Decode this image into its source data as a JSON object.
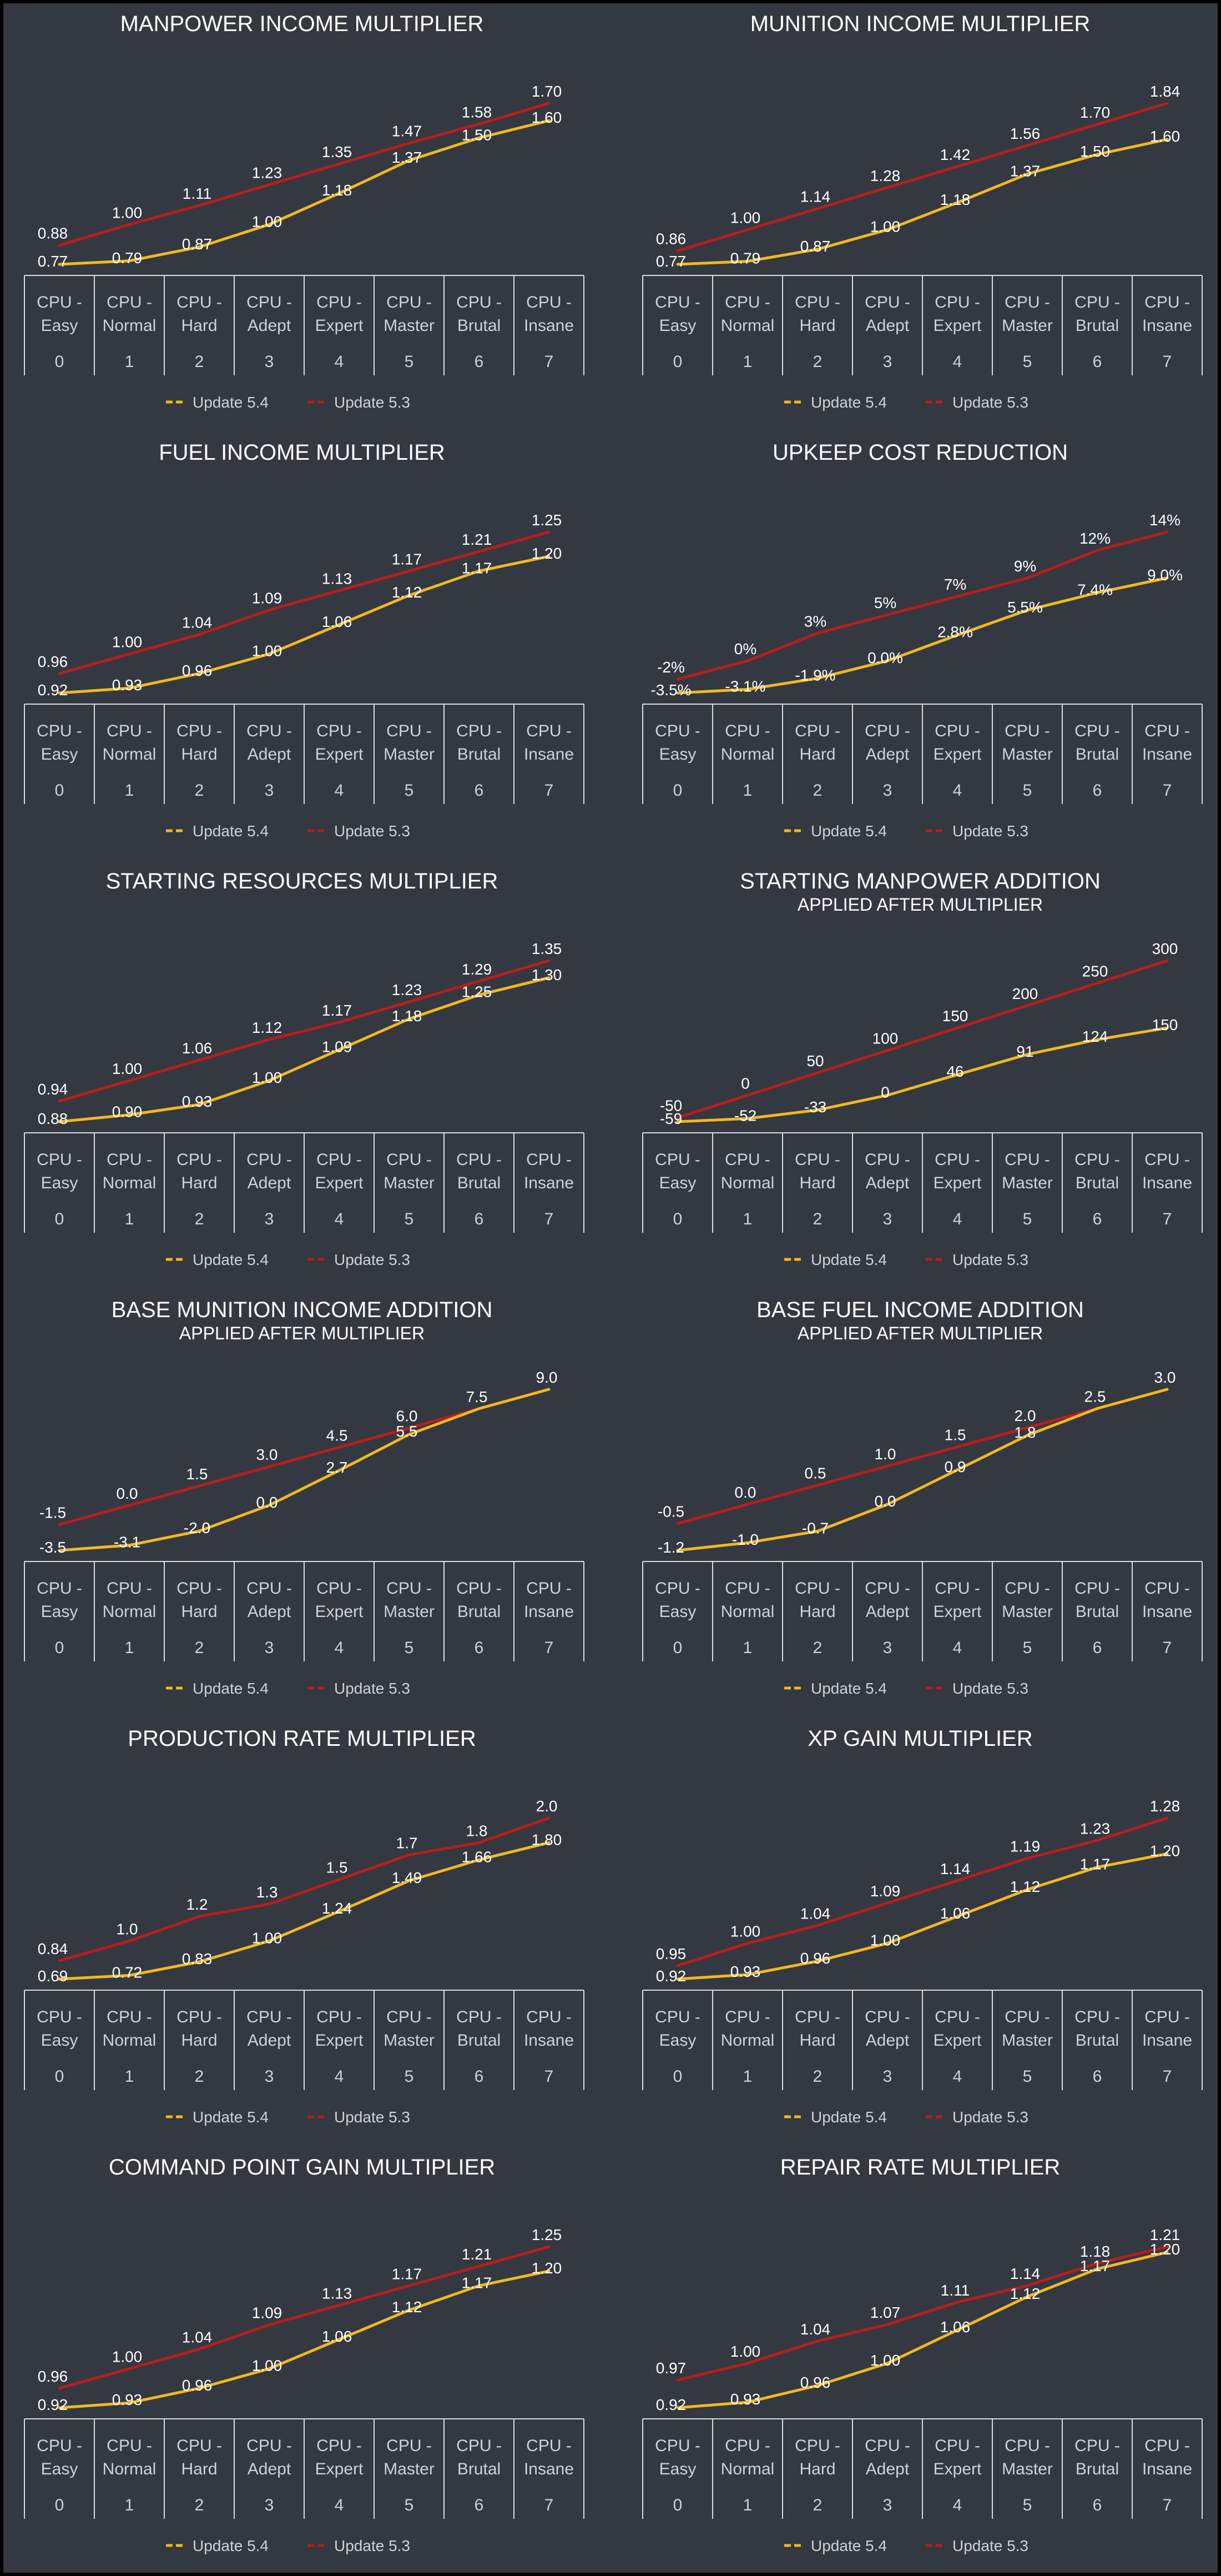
{
  "categories": [
    "CPU - Easy",
    "CPU - Normal",
    "CPU - Hard",
    "CPU - Adept",
    "CPU - Expert",
    "CPU - Master",
    "CPU - Brutal",
    "CPU - Insane"
  ],
  "indices": [
    "0",
    "1",
    "2",
    "3",
    "4",
    "5",
    "6",
    "7"
  ],
  "series_names": [
    "Update 5.4",
    "Update 5.3"
  ],
  "colors": {
    "Update 5.4": "#f2b81f",
    "Update 5.3": "#b81d1d",
    "background": "#343840",
    "grid": "#d9dce2"
  },
  "chart_data": [
    {
      "type": "line",
      "title": "MANPOWER INCOME MULTIPLIER",
      "subtitle": "",
      "series": [
        {
          "name": "Update 5.4",
          "values": [
            0.77,
            0.79,
            0.87,
            1.0,
            1.18,
            1.37,
            1.5,
            1.6
          ],
          "labels": [
            "0.77",
            "0.79",
            "0.87",
            "1.00",
            "1.18",
            "1.37",
            "1.50",
            "1.60"
          ]
        },
        {
          "name": "Update 5.3",
          "values": [
            0.88,
            1.0,
            1.11,
            1.23,
            1.35,
            1.47,
            1.58,
            1.7
          ],
          "labels": [
            "0.88",
            "1.00",
            "1.11",
            "1.23",
            "1.35",
            "1.47",
            "1.58",
            "1.70"
          ]
        }
      ]
    },
    {
      "type": "line",
      "title": "MUNITION INCOME MULTIPLIER",
      "subtitle": "",
      "series": [
        {
          "name": "Update 5.4",
          "values": [
            0.77,
            0.79,
            0.87,
            1.0,
            1.18,
            1.37,
            1.5,
            1.6
          ],
          "labels": [
            "0.77",
            "0.79",
            "0.87",
            "1.00",
            "1.18",
            "1.37",
            "1.50",
            "1.60"
          ]
        },
        {
          "name": "Update 5.3",
          "values": [
            0.86,
            1.0,
            1.14,
            1.28,
            1.42,
            1.56,
            1.7,
            1.84
          ],
          "labels": [
            "0.86",
            "1.00",
            "1.14",
            "1.28",
            "1.42",
            "1.56",
            "1.70",
            "1.84"
          ]
        }
      ]
    },
    {
      "type": "line",
      "title": "FUEL INCOME MULTIPLIER",
      "subtitle": "",
      "series": [
        {
          "name": "Update 5.4",
          "values": [
            0.92,
            0.93,
            0.96,
            1.0,
            1.06,
            1.12,
            1.17,
            1.2
          ],
          "labels": [
            "0.92",
            "0.93",
            "0.96",
            "1.00",
            "1.06",
            "1.12",
            "1.17",
            "1.20"
          ]
        },
        {
          "name": "Update 5.3",
          "values": [
            0.96,
            1.0,
            1.04,
            1.09,
            1.13,
            1.17,
            1.21,
            1.25
          ],
          "labels": [
            "0.96",
            "1.00",
            "1.04",
            "1.09",
            "1.13",
            "1.17",
            "1.21",
            "1.25"
          ]
        }
      ]
    },
    {
      "type": "line",
      "title": "UPKEEP COST REDUCTION",
      "subtitle": "",
      "series": [
        {
          "name": "Update 5.4",
          "values": [
            -3.5,
            -3.1,
            -1.9,
            0.0,
            2.8,
            5.5,
            7.4,
            9.0
          ],
          "labels": [
            "-3.5%",
            "-3.1%",
            "-1.9%",
            "0.0%",
            "2.8%",
            "5.5%",
            "7.4%",
            "9.0%"
          ]
        },
        {
          "name": "Update 5.3",
          "values": [
            -2,
            0,
            3,
            5,
            7,
            9,
            12,
            14
          ],
          "labels": [
            "-2%",
            "0%",
            "3%",
            "5%",
            "7%",
            "9%",
            "12%",
            "14%"
          ]
        }
      ]
    },
    {
      "type": "line",
      "title": "STARTING RESOURCES MULTIPLIER",
      "subtitle": "",
      "series": [
        {
          "name": "Update 5.4",
          "values": [
            0.88,
            0.9,
            0.93,
            1.0,
            1.09,
            1.18,
            1.25,
            1.3
          ],
          "labels": [
            "0.88",
            "0.90",
            "0.93",
            "1.00",
            "1.09",
            "1.18",
            "1.25",
            "1.30"
          ]
        },
        {
          "name": "Update 5.3",
          "values": [
            0.94,
            1.0,
            1.06,
            1.12,
            1.17,
            1.23,
            1.29,
            1.35
          ],
          "labels": [
            "0.94",
            "1.00",
            "1.06",
            "1.12",
            "1.17",
            "1.23",
            "1.29",
            "1.35"
          ]
        }
      ]
    },
    {
      "type": "line",
      "title": "STARTING MANPOWER ADDITION",
      "subtitle": "APPLIED AFTER MULTIPLIER",
      "series": [
        {
          "name": "Update 5.4",
          "values": [
            -59,
            -52,
            -33,
            0,
            46,
            91,
            124,
            150
          ],
          "labels": [
            "-59",
            "-52",
            "-33",
            "0",
            "46",
            "91",
            "124",
            "150"
          ]
        },
        {
          "name": "Update 5.3",
          "values": [
            -50,
            0,
            50,
            100,
            150,
            200,
            250,
            300
          ],
          "labels": [
            "-50",
            "0",
            "50",
            "100",
            "150",
            "200",
            "250",
            "300"
          ]
        }
      ]
    },
    {
      "type": "line",
      "title": "BASE MUNITION INCOME ADDITION",
      "subtitle": "APPLIED AFTER MULTIPLIER",
      "series": [
        {
          "name": "Update 5.4",
          "values": [
            -3.5,
            -3.1,
            -2.0,
            0.0,
            2.7,
            5.5,
            7.5,
            9.0
          ],
          "labels": [
            "-3.5",
            "-3.1",
            "-2.0",
            "0.0",
            "2.7",
            "5.5",
            "",
            ""
          ]
        },
        {
          "name": "Update 5.3",
          "values": [
            -1.5,
            0.0,
            1.5,
            3.0,
            4.5,
            6.0,
            7.5,
            9.0
          ],
          "labels": [
            "-1.5",
            "0.0",
            "1.5",
            "3.0",
            "4.5",
            "6.0",
            "7.5",
            "9.0"
          ]
        }
      ]
    },
    {
      "type": "line",
      "title": "BASE FUEL INCOME ADDITION",
      "subtitle": "APPLIED AFTER MULTIPLIER",
      "series": [
        {
          "name": "Update 5.4",
          "values": [
            -1.2,
            -1.0,
            -0.7,
            0.0,
            0.9,
            1.8,
            2.5,
            3.0
          ],
          "labels": [
            "-1.2",
            "-1.0",
            "-0.7",
            "0.0",
            "0.9",
            "1.8",
            "",
            ""
          ]
        },
        {
          "name": "Update 5.3",
          "values": [
            -0.5,
            0.0,
            0.5,
            1.0,
            1.5,
            2.0,
            2.5,
            3.0
          ],
          "labels": [
            "-0.5",
            "0.0",
            "0.5",
            "1.0",
            "1.5",
            "2.0",
            "2.5",
            "3.0"
          ]
        }
      ]
    },
    {
      "type": "line",
      "title": "PRODUCTION RATE MULTIPLIER",
      "subtitle": "",
      "series": [
        {
          "name": "Update 5.4",
          "values": [
            0.69,
            0.72,
            0.83,
            1.0,
            1.24,
            1.49,
            1.66,
            1.8
          ],
          "labels": [
            "0.69",
            "0.72",
            "0.83",
            "1.00",
            "1.24",
            "1.49",
            "1.66",
            "1.80"
          ]
        },
        {
          "name": "Update 5.3",
          "values": [
            0.84,
            1.0,
            1.2,
            1.3,
            1.5,
            1.7,
            1.8,
            2.0
          ],
          "labels": [
            "0.84",
            "1.0",
            "1.2",
            "1.3",
            "1.5",
            "1.7",
            "1.8",
            "2.0"
          ]
        }
      ]
    },
    {
      "type": "line",
      "title": "XP GAIN MULTIPLIER",
      "subtitle": "",
      "series": [
        {
          "name": "Update 5.4",
          "values": [
            0.92,
            0.93,
            0.96,
            1.0,
            1.06,
            1.12,
            1.17,
            1.2
          ],
          "labels": [
            "0.92",
            "0.93",
            "0.96",
            "1.00",
            "1.06",
            "1.12",
            "1.17",
            "1.20"
          ]
        },
        {
          "name": "Update 5.3",
          "values": [
            0.95,
            1.0,
            1.04,
            1.09,
            1.14,
            1.19,
            1.23,
            1.28
          ],
          "labels": [
            "0.95",
            "1.00",
            "1.04",
            "1.09",
            "1.14",
            "1.19",
            "1.23",
            "1.28"
          ]
        }
      ]
    },
    {
      "type": "line",
      "title": "COMMAND POINT GAIN MULTIPLIER",
      "subtitle": "",
      "series": [
        {
          "name": "Update 5.4",
          "values": [
            0.92,
            0.93,
            0.96,
            1.0,
            1.06,
            1.12,
            1.17,
            1.2
          ],
          "labels": [
            "0.92",
            "0.93",
            "0.96",
            "1.00",
            "1.06",
            "1.12",
            "1.17",
            "1.20"
          ]
        },
        {
          "name": "Update 5.3",
          "values": [
            0.96,
            1.0,
            1.04,
            1.09,
            1.13,
            1.17,
            1.21,
            1.25
          ],
          "labels": [
            "0.96",
            "1.00",
            "1.04",
            "1.09",
            "1.13",
            "1.17",
            "1.21",
            "1.25"
          ]
        }
      ]
    },
    {
      "type": "line",
      "title": "REPAIR RATE MULTIPLIER",
      "subtitle": "",
      "series": [
        {
          "name": "Update 5.4",
          "values": [
            0.92,
            0.93,
            0.96,
            1.0,
            1.06,
            1.12,
            1.17,
            1.2
          ],
          "labels": [
            "0.92",
            "0.93",
            "0.96",
            "1.00",
            "1.06",
            "1.12",
            "1.17",
            "1.20"
          ]
        },
        {
          "name": "Update 5.3",
          "values": [
            0.97,
            1.0,
            1.04,
            1.07,
            1.11,
            1.14,
            1.18,
            1.21
          ],
          "labels": [
            "0.97",
            "1.00",
            "1.04",
            "1.07",
            "1.11",
            "1.14",
            "1.18",
            "1.21"
          ]
        }
      ]
    }
  ]
}
